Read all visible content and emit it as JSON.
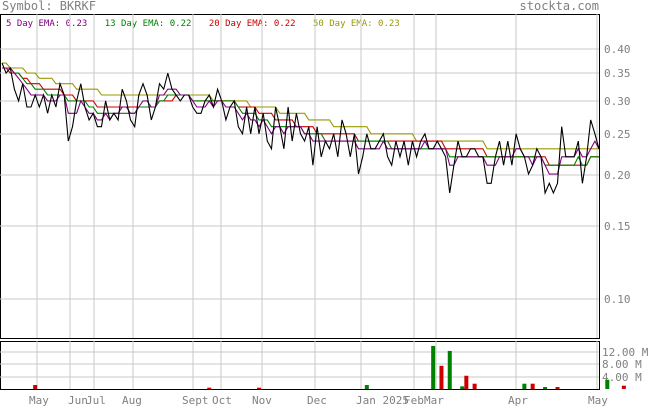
{
  "header": {
    "symbol_label": "Symbol: BKRKF",
    "site": "stockta.com"
  },
  "colors": {
    "price": "#000000",
    "ema5": "#800080",
    "ema13": "#008000",
    "ema20": "#cc0000",
    "ema50": "#999900",
    "grid": "#c8c8c8",
    "frame": "#000000",
    "axis_text": "#808080",
    "vol_up": "#008000",
    "vol_down": "#cc0000"
  },
  "chart_data": {
    "type": "line",
    "title": "Symbol: BKRKF",
    "y_scale": "log",
    "ylim": [
      0.08,
      0.42
    ],
    "y_ticks": [
      "0.40",
      "0.35",
      "0.30",
      "0.25",
      "0.20",
      "0.15",
      "0.10"
    ],
    "x_tick_labels": [
      "May",
      "Jun",
      "Jul",
      "Aug",
      "Sept",
      "Oct",
      "Nov",
      "Dec",
      "Jan 2025",
      "Feb",
      "Mar",
      "Apr",
      "May"
    ],
    "legend": [
      {
        "label": "5 Day EMA:",
        "value": "0.23",
        "color_key": "ema5"
      },
      {
        "label": "13 Day EMA:",
        "value": "0.22",
        "color_key": "ema13"
      },
      {
        "label": "20 Day EMA:",
        "value": "0.22",
        "color_key": "ema20"
      },
      {
        "label": "50 Day EMA:",
        "value": "0.23",
        "color_key": "ema50"
      }
    ],
    "series": [
      {
        "name": "Price",
        "color_key": "price",
        "values": [
          0.37,
          0.35,
          0.36,
          0.32,
          0.3,
          0.33,
          0.29,
          0.29,
          0.31,
          0.29,
          0.31,
          0.28,
          0.31,
          0.29,
          0.33,
          0.31,
          0.24,
          0.26,
          0.3,
          0.33,
          0.29,
          0.27,
          0.28,
          0.26,
          0.26,
          0.3,
          0.27,
          0.28,
          0.27,
          0.32,
          0.3,
          0.27,
          0.26,
          0.31,
          0.33,
          0.31,
          0.27,
          0.29,
          0.33,
          0.32,
          0.35,
          0.32,
          0.31,
          0.3,
          0.31,
          0.31,
          0.29,
          0.28,
          0.28,
          0.3,
          0.31,
          0.29,
          0.32,
          0.3,
          0.27,
          0.29,
          0.3,
          0.26,
          0.25,
          0.29,
          0.25,
          0.29,
          0.25,
          0.28,
          0.24,
          0.23,
          0.29,
          0.26,
          0.23,
          0.29,
          0.24,
          0.28,
          0.25,
          0.24,
          0.26,
          0.21,
          0.26,
          0.22,
          0.24,
          0.23,
          0.25,
          0.22,
          0.27,
          0.25,
          0.22,
          0.25,
          0.2,
          0.22,
          0.25,
          0.23,
          0.23,
          0.24,
          0.25,
          0.22,
          0.21,
          0.24,
          0.22,
          0.24,
          0.21,
          0.24,
          0.22,
          0.24,
          0.25,
          0.23,
          0.23,
          0.24,
          0.23,
          0.22,
          0.18,
          0.21,
          0.24,
          0.22,
          0.22,
          0.23,
          0.23,
          0.22,
          0.22,
          0.19,
          0.19,
          0.22,
          0.24,
          0.21,
          0.24,
          0.21,
          0.25,
          0.23,
          0.22,
          0.2,
          0.21,
          0.23,
          0.22,
          0.18,
          0.19,
          0.18,
          0.19,
          0.26,
          0.22,
          0.22,
          0.22,
          0.24,
          0.19,
          0.22,
          0.27,
          0.25,
          0.23
        ]
      },
      {
        "name": "5 Day EMA",
        "color_key": "ema5",
        "values": [
          0.36,
          0.36,
          0.36,
          0.35,
          0.34,
          0.33,
          0.32,
          0.31,
          0.31,
          0.31,
          0.31,
          0.3,
          0.3,
          0.3,
          0.31,
          0.31,
          0.28,
          0.28,
          0.28,
          0.3,
          0.29,
          0.28,
          0.28,
          0.27,
          0.27,
          0.28,
          0.27,
          0.28,
          0.28,
          0.29,
          0.29,
          0.28,
          0.28,
          0.29,
          0.3,
          0.3,
          0.29,
          0.29,
          0.31,
          0.31,
          0.32,
          0.32,
          0.32,
          0.31,
          0.31,
          0.31,
          0.3,
          0.29,
          0.29,
          0.29,
          0.3,
          0.29,
          0.3,
          0.3,
          0.29,
          0.29,
          0.29,
          0.28,
          0.27,
          0.28,
          0.27,
          0.27,
          0.26,
          0.27,
          0.26,
          0.25,
          0.26,
          0.26,
          0.25,
          0.26,
          0.26,
          0.26,
          0.26,
          0.25,
          0.25,
          0.24,
          0.24,
          0.24,
          0.24,
          0.24,
          0.24,
          0.24,
          0.24,
          0.24,
          0.24,
          0.24,
          0.23,
          0.23,
          0.23,
          0.23,
          0.23,
          0.23,
          0.24,
          0.23,
          0.23,
          0.23,
          0.23,
          0.23,
          0.23,
          0.23,
          0.23,
          0.23,
          0.24,
          0.23,
          0.23,
          0.23,
          0.23,
          0.23,
          0.21,
          0.21,
          0.22,
          0.22,
          0.22,
          0.22,
          0.22,
          0.22,
          0.22,
          0.21,
          0.21,
          0.21,
          0.22,
          0.22,
          0.22,
          0.22,
          0.23,
          0.23,
          0.22,
          0.22,
          0.21,
          0.22,
          0.22,
          0.21,
          0.2,
          0.2,
          0.2,
          0.22,
          0.22,
          0.22,
          0.22,
          0.23,
          0.22,
          0.22,
          0.23,
          0.24,
          0.23
        ]
      },
      {
        "name": "13 Day EMA",
        "color_key": "ema13",
        "values": [
          0.36,
          0.36,
          0.36,
          0.35,
          0.35,
          0.34,
          0.33,
          0.33,
          0.32,
          0.32,
          0.32,
          0.31,
          0.31,
          0.31,
          0.31,
          0.31,
          0.3,
          0.3,
          0.3,
          0.3,
          0.3,
          0.29,
          0.29,
          0.28,
          0.28,
          0.28,
          0.28,
          0.28,
          0.28,
          0.28,
          0.28,
          0.28,
          0.28,
          0.29,
          0.29,
          0.29,
          0.29,
          0.29,
          0.3,
          0.3,
          0.31,
          0.31,
          0.31,
          0.31,
          0.31,
          0.31,
          0.3,
          0.3,
          0.3,
          0.3,
          0.3,
          0.3,
          0.3,
          0.3,
          0.3,
          0.3,
          0.3,
          0.29,
          0.28,
          0.28,
          0.28,
          0.28,
          0.27,
          0.27,
          0.27,
          0.26,
          0.26,
          0.26,
          0.26,
          0.26,
          0.26,
          0.26,
          0.26,
          0.25,
          0.25,
          0.25,
          0.25,
          0.25,
          0.24,
          0.24,
          0.24,
          0.24,
          0.24,
          0.24,
          0.24,
          0.24,
          0.24,
          0.24,
          0.24,
          0.24,
          0.24,
          0.24,
          0.24,
          0.24,
          0.23,
          0.23,
          0.23,
          0.23,
          0.23,
          0.23,
          0.23,
          0.23,
          0.23,
          0.23,
          0.23,
          0.23,
          0.23,
          0.23,
          0.22,
          0.22,
          0.22,
          0.22,
          0.22,
          0.22,
          0.22,
          0.22,
          0.22,
          0.22,
          0.22,
          0.22,
          0.22,
          0.22,
          0.22,
          0.22,
          0.22,
          0.22,
          0.22,
          0.22,
          0.22,
          0.22,
          0.22,
          0.21,
          0.21,
          0.21,
          0.21,
          0.21,
          0.21,
          0.21,
          0.21,
          0.22,
          0.21,
          0.21,
          0.22,
          0.22,
          0.22
        ]
      },
      {
        "name": "20 Day EMA",
        "color_key": "ema20",
        "values": [
          0.36,
          0.36,
          0.35,
          0.35,
          0.35,
          0.34,
          0.34,
          0.33,
          0.33,
          0.33,
          0.32,
          0.32,
          0.32,
          0.32,
          0.32,
          0.31,
          0.31,
          0.31,
          0.3,
          0.3,
          0.3,
          0.3,
          0.3,
          0.29,
          0.29,
          0.29,
          0.29,
          0.29,
          0.29,
          0.29,
          0.29,
          0.29,
          0.29,
          0.29,
          0.29,
          0.29,
          0.29,
          0.29,
          0.3,
          0.3,
          0.3,
          0.3,
          0.31,
          0.31,
          0.31,
          0.31,
          0.3,
          0.3,
          0.3,
          0.3,
          0.3,
          0.3,
          0.3,
          0.3,
          0.3,
          0.3,
          0.3,
          0.29,
          0.29,
          0.29,
          0.29,
          0.29,
          0.28,
          0.28,
          0.28,
          0.28,
          0.27,
          0.27,
          0.27,
          0.27,
          0.27,
          0.26,
          0.26,
          0.26,
          0.26,
          0.26,
          0.25,
          0.25,
          0.25,
          0.25,
          0.25,
          0.25,
          0.25,
          0.25,
          0.25,
          0.25,
          0.24,
          0.24,
          0.24,
          0.24,
          0.24,
          0.24,
          0.24,
          0.24,
          0.24,
          0.24,
          0.24,
          0.24,
          0.24,
          0.24,
          0.24,
          0.24,
          0.24,
          0.24,
          0.24,
          0.24,
          0.24,
          0.23,
          0.23,
          0.23,
          0.23,
          0.23,
          0.23,
          0.23,
          0.23,
          0.23,
          0.23,
          0.22,
          0.22,
          0.22,
          0.22,
          0.22,
          0.22,
          0.22,
          0.22,
          0.22,
          0.22,
          0.22,
          0.22,
          0.22,
          0.22,
          0.22,
          0.21,
          0.21,
          0.21,
          0.21,
          0.21,
          0.21,
          0.21,
          0.21,
          0.21,
          0.21,
          0.22,
          0.22,
          0.22
        ]
      },
      {
        "name": "50 Day EMA",
        "color_key": "ema50",
        "values": [
          0.37,
          0.37,
          0.36,
          0.36,
          0.36,
          0.36,
          0.35,
          0.35,
          0.35,
          0.34,
          0.34,
          0.34,
          0.34,
          0.33,
          0.33,
          0.33,
          0.33,
          0.33,
          0.32,
          0.32,
          0.32,
          0.32,
          0.32,
          0.32,
          0.31,
          0.31,
          0.31,
          0.31,
          0.31,
          0.31,
          0.31,
          0.31,
          0.31,
          0.31,
          0.31,
          0.31,
          0.31,
          0.31,
          0.31,
          0.31,
          0.31,
          0.31,
          0.31,
          0.31,
          0.31,
          0.31,
          0.31,
          0.31,
          0.31,
          0.31,
          0.31,
          0.3,
          0.3,
          0.3,
          0.3,
          0.3,
          0.3,
          0.3,
          0.3,
          0.3,
          0.29,
          0.29,
          0.29,
          0.29,
          0.29,
          0.29,
          0.29,
          0.28,
          0.28,
          0.28,
          0.28,
          0.28,
          0.28,
          0.28,
          0.27,
          0.27,
          0.27,
          0.27,
          0.27,
          0.27,
          0.26,
          0.26,
          0.26,
          0.26,
          0.26,
          0.26,
          0.26,
          0.26,
          0.26,
          0.25,
          0.25,
          0.25,
          0.25,
          0.25,
          0.25,
          0.25,
          0.25,
          0.25,
          0.25,
          0.25,
          0.24,
          0.24,
          0.24,
          0.24,
          0.24,
          0.24,
          0.24,
          0.24,
          0.24,
          0.24,
          0.24,
          0.24,
          0.24,
          0.24,
          0.24,
          0.24,
          0.24,
          0.23,
          0.23,
          0.23,
          0.23,
          0.23,
          0.23,
          0.23,
          0.23,
          0.23,
          0.23,
          0.23,
          0.23,
          0.23,
          0.23,
          0.23,
          0.23,
          0.23,
          0.23,
          0.23,
          0.23,
          0.23,
          0.23,
          0.23,
          0.23,
          0.23,
          0.23,
          0.23,
          0.23
        ]
      }
    ],
    "volume": {
      "y_ticks": [
        "12.00 M",
        "8.00 M",
        "4.00 M"
      ],
      "ylim": [
        0,
        14.5
      ],
      "bars": [
        {
          "i": 8,
          "v": 1.2,
          "dir": "down"
        },
        {
          "i": 50,
          "v": 0.4,
          "dir": "down"
        },
        {
          "i": 62,
          "v": 0.4,
          "dir": "down"
        },
        {
          "i": 88,
          "v": 1.2,
          "dir": "up"
        },
        {
          "i": 104,
          "v": 13.0,
          "dir": "up"
        },
        {
          "i": 106,
          "v": 7.0,
          "dir": "down"
        },
        {
          "i": 108,
          "v": 11.5,
          "dir": "up"
        },
        {
          "i": 111,
          "v": 0.8,
          "dir": "up"
        },
        {
          "i": 112,
          "v": 4.0,
          "dir": "down"
        },
        {
          "i": 114,
          "v": 1.6,
          "dir": "down"
        },
        {
          "i": 126,
          "v": 1.6,
          "dir": "up"
        },
        {
          "i": 128,
          "v": 1.6,
          "dir": "down"
        },
        {
          "i": 131,
          "v": 0.6,
          "dir": "up"
        },
        {
          "i": 134,
          "v": 0.6,
          "dir": "down"
        },
        {
          "i": 146,
          "v": 2.8,
          "dir": "up"
        },
        {
          "i": 150,
          "v": 1.0,
          "dir": "down"
        },
        {
          "i": 163,
          "v": 1.4,
          "dir": "up"
        }
      ]
    }
  }
}
